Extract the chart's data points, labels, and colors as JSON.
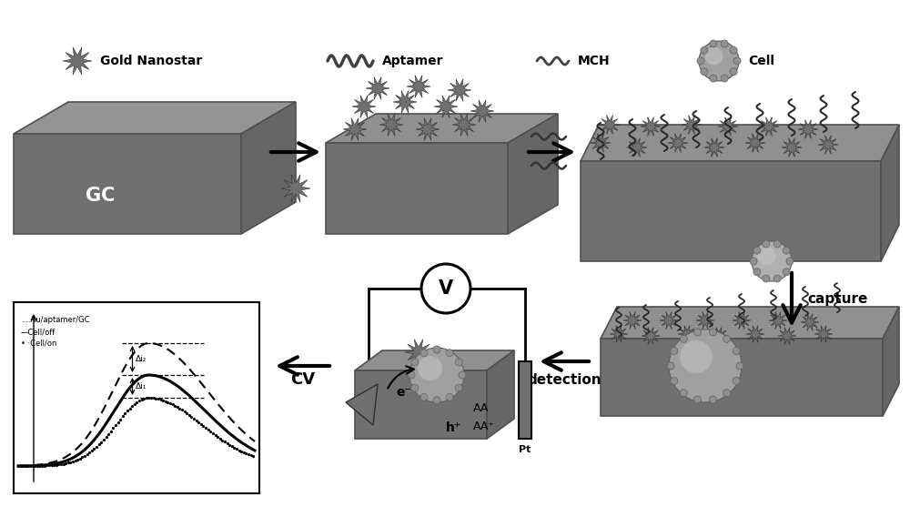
{
  "background_color": "#ffffff",
  "fig_width": 10.0,
  "fig_height": 5.57,
  "gc_label": "GC",
  "capture_label": "capture",
  "detection_label": "detection",
  "cv_label": "CV",
  "bottom_legend": [
    "Gold Nanostar",
    "Aptamer",
    "MCH",
    "Cell"
  ],
  "plate_top_color": "#909090",
  "plate_front_color": "#787878",
  "plate_edge_color": "#505050",
  "nanostar_color": "#686868",
  "cell_color": "#a0a0a0",
  "aptamer_color": "#333333",
  "arrow_color": "#000000"
}
